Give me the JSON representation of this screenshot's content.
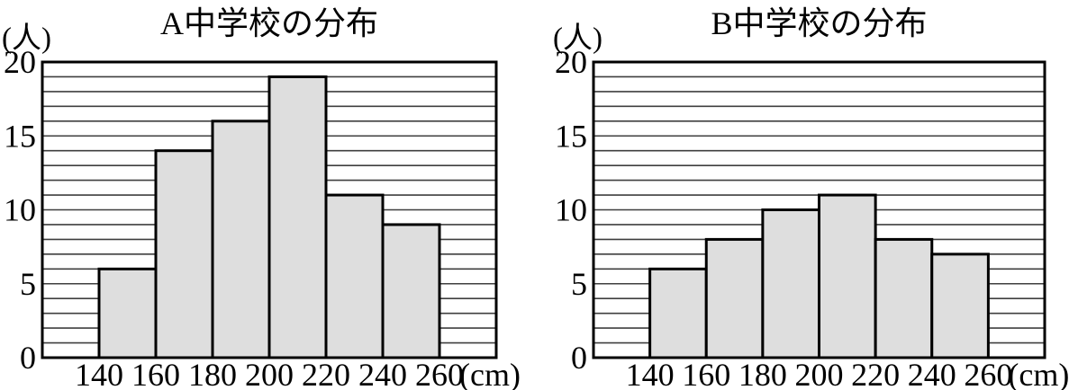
{
  "page": {
    "background": "#ffffff"
  },
  "chart_data": [
    {
      "type": "bar",
      "variant": "histogram",
      "title": "A中学校の分布",
      "y_axis_unit_label": "(人)",
      "x_axis_unit_label": "(cm)",
      "ylim": [
        0,
        20
      ],
      "grid": "horizontal lines every 1 unit",
      "legend_position": "none",
      "y_tick_labels": [
        "0",
        "5",
        "10",
        "15",
        "20"
      ],
      "y_tick_values": [
        0,
        5,
        10,
        15,
        20
      ],
      "x_tick_labels": [
        "140",
        "160",
        "180",
        "200",
        "220",
        "240",
        "260"
      ],
      "categories": [
        "140-160",
        "160-180",
        "180-200",
        "200-220",
        "220-240",
        "240-260"
      ],
      "values": [
        6,
        14,
        16,
        19,
        11,
        9
      ],
      "colors": {
        "bar_fill": "#dedede",
        "bar_stroke": "#000000",
        "grid_line": "#3f3f3f",
        "border": "#000000",
        "text": "#000000"
      }
    },
    {
      "type": "bar",
      "variant": "histogram",
      "title": "B中学校の分布",
      "y_axis_unit_label": "(人)",
      "x_axis_unit_label": "(cm)",
      "ylim": [
        0,
        20
      ],
      "grid": "horizontal lines every 1 unit",
      "legend_position": "none",
      "y_tick_labels": [
        "0",
        "5",
        "10",
        "15",
        "20"
      ],
      "y_tick_values": [
        0,
        5,
        10,
        15,
        20
      ],
      "x_tick_labels": [
        "140",
        "160",
        "180",
        "200",
        "220",
        "240",
        "260"
      ],
      "categories": [
        "140-160",
        "160-180",
        "180-200",
        "200-220",
        "220-240",
        "240-260"
      ],
      "values": [
        6,
        8,
        10,
        11,
        8,
        7
      ],
      "colors": {
        "bar_fill": "#dedede",
        "bar_stroke": "#000000",
        "grid_line": "#3f3f3f",
        "border": "#000000",
        "text": "#000000"
      }
    }
  ]
}
